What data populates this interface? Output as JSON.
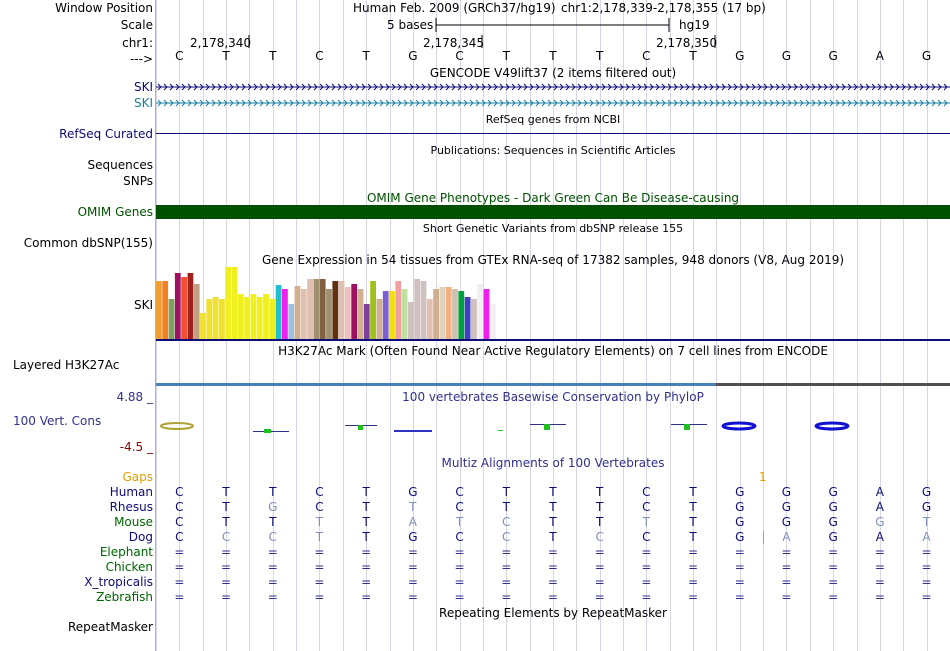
{
  "header": {
    "window_position_label": "Window Position",
    "scale_label": "Scale",
    "chrom_label": "chr1:",
    "arrow_label": "--->",
    "assembly": "Human Feb. 2009 (GRCh37/hg19)",
    "position": "chr1:2,178,339-2,178,355 (17 bp)",
    "scale_text": "5 bases",
    "db": "hg19",
    "ticks": [
      "2,178,340",
      "2,178,345",
      "2,178,350"
    ]
  },
  "bases": [
    "C",
    "T",
    "T",
    "C",
    "T",
    "G",
    "C",
    "T",
    "T",
    "T",
    "C",
    "T",
    "G",
    "G",
    "G",
    "A",
    "G"
  ],
  "tracks": {
    "gencode": {
      "title": "GENCODE V49lift37 (2 items filtered out)",
      "items": [
        "SKI",
        "SKI"
      ],
      "colors": [
        "#0c0c78",
        "#1a7fa0"
      ]
    },
    "refseq": {
      "label": "RefSeq Curated",
      "title": "RefSeq genes from NCBI",
      "color": "#0c0c78"
    },
    "publications": {
      "label": "Sequences",
      "title": "Publications: Sequences in Scientific Articles"
    },
    "snps": {
      "label": "SNPs"
    },
    "omim": {
      "label": "OMIM Genes",
      "title": "OMIM Gene Phenotypes - Dark Green Can Be Disease-causing",
      "color": "#005000"
    },
    "dbsnp": {
      "label": "Common dbSNP(155)",
      "title": "Short Genetic Variants from dbSNP release 155"
    },
    "gtex": {
      "label": "SKI",
      "title": "Gene Expression in 54 tissues from GTEx RNA-seq of 17382 samples, 948 donors (V8, Aug 2019)"
    },
    "h3k27ac": {
      "label": "Layered H3K27Ac",
      "title": "H3K27Ac Mark (Often Found Near Active Regulatory Elements) on 7 cell lines from ENCODE"
    },
    "cons": {
      "label": "100 Vert. Cons",
      "title": "100 vertebrates Basewise Conservation by PhyloP",
      "max": "4.88 _",
      "min": "-4.5 _",
      "color": "#30308c"
    },
    "multiz": {
      "title": "Multiz Alignments of 100 Vertebrates",
      "gaps_label": "Gaps",
      "gaps_value": "1"
    },
    "repeatmasker": {
      "label": "RepeatMasker",
      "title": "Repeating Elements by RepeatMasker"
    }
  },
  "species": [
    {
      "name": "Human",
      "color": "#0c0c78",
      "bases": [
        "C",
        "T",
        "T",
        "C",
        "T",
        "G",
        "C",
        "T",
        "T",
        "T",
        "C",
        "T",
        "G",
        "G",
        "G",
        "A",
        "G"
      ]
    },
    {
      "name": "Rhesus",
      "color": "#0c0c78",
      "bases": [
        "C",
        "T",
        "G",
        "C",
        "T",
        "T",
        "C",
        "T",
        "T",
        "T",
        "C",
        "T",
        "G",
        "G",
        "G",
        "A",
        "G"
      ]
    },
    {
      "name": "Mouse",
      "color": "#006400",
      "bases": [
        "C",
        "T",
        "T",
        "T",
        "T",
        "A",
        "T",
        "C",
        "T",
        "T",
        "T",
        "T",
        "G",
        "G",
        "G",
        "G",
        "T"
      ]
    },
    {
      "name": "Dog",
      "color": "#0c0c78",
      "bases": [
        "C",
        "C",
        "C",
        "T",
        "T",
        "G",
        "C",
        "C",
        "T",
        "C",
        "C",
        "T",
        "G",
        "A",
        "G",
        "A",
        "A"
      ]
    },
    {
      "name": "Elephant",
      "color": "#006400",
      "bases": [
        "=",
        "=",
        "=",
        "=",
        "=",
        "=",
        "=",
        "=",
        "=",
        "=",
        "=",
        "=",
        "=",
        "=",
        "=",
        "=",
        "="
      ]
    },
    {
      "name": "Chicken",
      "color": "#006400",
      "bases": [
        "=",
        "=",
        "=",
        "=",
        "=",
        "=",
        "=",
        "=",
        "=",
        "=",
        "=",
        "=",
        "=",
        "=",
        "=",
        "=",
        "="
      ]
    },
    {
      "name": "X_tropicalis",
      "color": "#0c0c78",
      "bases": [
        "=",
        "=",
        "=",
        "=",
        "=",
        "=",
        "=",
        "=",
        "=",
        "=",
        "=",
        "=",
        "=",
        "=",
        "=",
        "=",
        "="
      ]
    },
    {
      "name": "Zebrafish",
      "color": "#006400",
      "bases": [
        "=",
        "=",
        "=",
        "=",
        "=",
        "=",
        "=",
        "=",
        "=",
        "=",
        "=",
        "=",
        "=",
        "=",
        "=",
        "=",
        "="
      ]
    }
  ],
  "chart_data": {
    "type": "bar",
    "title": "Gene Expression in 54 tissues from GTEx RNA-seq of 17382 samples, 948 donors (V8, Aug 2019)",
    "ylim": [
      0,
      72
    ],
    "values": [
      58,
      58,
      40,
      66,
      62,
      66,
      55,
      26,
      40,
      42,
      40,
      72,
      72,
      45,
      42,
      45,
      42,
      45,
      40,
      54,
      50,
      35,
      53,
      50,
      60,
      60,
      60,
      50,
      58,
      58,
      52,
      55,
      50,
      35,
      58,
      40,
      48,
      48,
      58,
      50,
      37,
      60,
      58,
      40,
      50,
      52,
      52,
      50,
      48,
      42,
      40,
      55,
      50,
      35
    ],
    "colors": [
      "#f0a030",
      "#f08020",
      "#80a060",
      "#a01060",
      "#f05030",
      "#a02020",
      "#c0a080",
      "#f0e030",
      "#f0e030",
      "#f0e030",
      "#f0e030",
      "#f0f020",
      "#f0f020",
      "#f0f020",
      "#f0f020",
      "#f0f020",
      "#f0f020",
      "#f0f020",
      "#f0f020",
      "#20c0d0",
      "#f020f0",
      "#a0c0e0",
      "#d0b090",
      "#e0c0b0",
      "#e0c0b0",
      "#a09070",
      "#806040",
      "#a09070",
      "#603010",
      "#e0c0b0",
      "#f0c0c0",
      "#a01060",
      "#d0b090",
      "#8040a0",
      "#a0c020",
      "#d0b090",
      "#8060d0",
      "#f0e010",
      "#f0a0a0",
      "#c0e0a0",
      "#d0c0c0",
      "#d0c0c0",
      "#d0c0c0",
      "#e0c0b0",
      "#d0b090",
      "#e0d0c0",
      "#f0b080",
      "#d0c0b0",
      "#00a040",
      "#4040c0",
      "#d0c0c0",
      "#f0f0f0",
      "#f020f0",
      "#f0f0f0"
    ]
  }
}
